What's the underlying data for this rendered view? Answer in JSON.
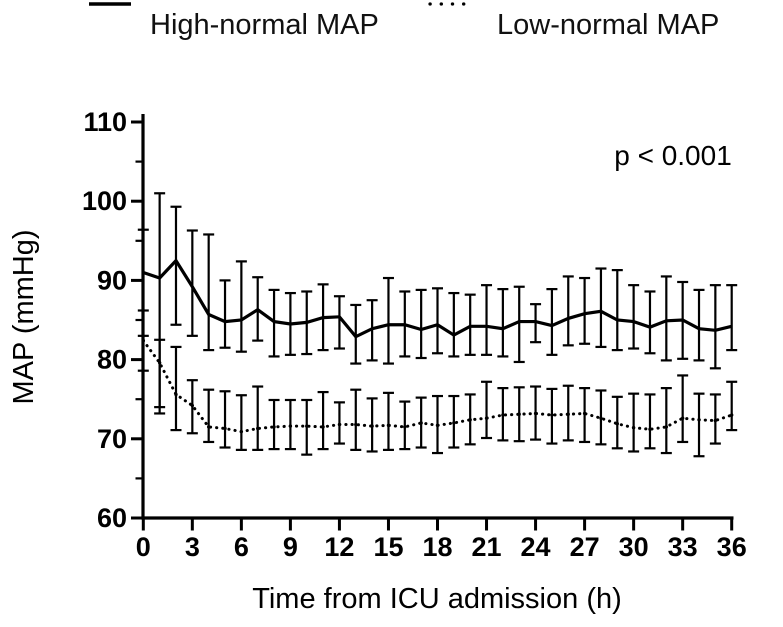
{
  "legend": [
    {
      "label": "High-normal MAP",
      "style": "solid"
    },
    {
      "label": "Low-normal MAP",
      "style": "dotted"
    }
  ],
  "annotation": {
    "p_value": "p < 0.001"
  },
  "colors": {
    "line": "#000000",
    "background": "#ffffff"
  },
  "chart_data": {
    "type": "line",
    "title": "",
    "xlabel": "Time from ICU admission (h)",
    "ylabel": "MAP (mmHg)",
    "xlim": [
      0,
      36
    ],
    "ylim": [
      60,
      110
    ],
    "xticks": [
      0,
      3,
      6,
      9,
      12,
      15,
      18,
      21,
      24,
      27,
      30,
      33,
      36
    ],
    "yticks": [
      60,
      70,
      80,
      90,
      100,
      110
    ],
    "yminorticks": [
      65,
      75,
      85,
      95,
      105
    ],
    "legend_position": "top",
    "grid": false,
    "error_bars": true,
    "x": [
      0,
      1,
      2,
      3,
      4,
      5,
      6,
      7,
      8,
      9,
      10,
      11,
      12,
      13,
      14,
      15,
      16,
      17,
      18,
      19,
      20,
      21,
      22,
      23,
      24,
      25,
      26,
      27,
      28,
      29,
      30,
      31,
      32,
      33,
      34,
      35,
      36
    ],
    "series": [
      {
        "name": "High-normal MAP",
        "line": "solid",
        "color": "#000000",
        "values": [
          91.0,
          90.3,
          92.5,
          89.2,
          85.7,
          84.8,
          85.0,
          86.3,
          84.8,
          84.5,
          84.7,
          85.3,
          85.4,
          82.9,
          83.9,
          84.4,
          84.4,
          83.8,
          84.4,
          83.1,
          84.2,
          84.2,
          83.9,
          84.8,
          84.8,
          84.3,
          85.2,
          85.8,
          86.1,
          85.0,
          84.8,
          84.1,
          84.9,
          85.0,
          83.9,
          83.7,
          84.2
        ],
        "lower": [
          83.0,
          74.0,
          84.4,
          83.0,
          81.2,
          81.5,
          81.0,
          82.4,
          80.4,
          80.6,
          80.7,
          81.2,
          81.4,
          79.5,
          79.9,
          79.5,
          80.4,
          80.2,
          80.8,
          80.4,
          80.6,
          80.6,
          80.4,
          79.7,
          82.2,
          80.6,
          81.8,
          82.0,
          81.6,
          81.2,
          81.4,
          80.8,
          79.9,
          80.1,
          79.9,
          78.9,
          81.2
        ],
        "upper": [
          96.4,
          101.0,
          99.3,
          96.3,
          95.8,
          90.0,
          92.4,
          90.4,
          88.8,
          88.4,
          88.6,
          89.5,
          88.0,
          86.9,
          87.5,
          90.3,
          88.6,
          88.8,
          89.0,
          88.4,
          88.2,
          89.4,
          88.9,
          89.2,
          87.0,
          88.9,
          90.5,
          90.3,
          91.5,
          91.3,
          89.4,
          88.6,
          90.5,
          89.8,
          88.8,
          89.4,
          89.4
        ]
      },
      {
        "name": "Low-normal MAP",
        "line": "dotted",
        "color": "#000000",
        "values": [
          82.4,
          79.6,
          75.6,
          74.2,
          71.5,
          71.3,
          70.9,
          71.3,
          71.5,
          71.6,
          71.6,
          71.5,
          71.8,
          71.8,
          71.6,
          71.7,
          71.5,
          72.0,
          71.7,
          72.0,
          72.4,
          72.6,
          73.0,
          73.1,
          73.2,
          73.0,
          73.1,
          73.2,
          72.6,
          71.9,
          71.4,
          71.2,
          71.5,
          72.6,
          72.4,
          72.3,
          73.0
        ],
        "lower": [
          78.6,
          73.2,
          71.1,
          70.7,
          69.6,
          68.9,
          68.6,
          68.6,
          68.7,
          68.7,
          68.0,
          68.7,
          69.4,
          68.6,
          68.4,
          68.6,
          68.7,
          68.9,
          68.2,
          68.9,
          69.3,
          70.1,
          69.8,
          69.7,
          69.9,
          69.4,
          69.8,
          69.6,
          69.3,
          68.8,
          68.4,
          68.8,
          68.2,
          69.6,
          67.8,
          69.4,
          71.1
        ],
        "upper": [
          86.2,
          82.5,
          81.6,
          77.4,
          76.2,
          76.0,
          75.5,
          76.6,
          74.9,
          74.9,
          74.9,
          75.9,
          74.6,
          76.2,
          75.1,
          75.8,
          74.7,
          75.2,
          75.4,
          75.4,
          75.6,
          77.2,
          76.4,
          76.5,
          76.6,
          76.3,
          76.7,
          76.4,
          76.1,
          75.3,
          75.7,
          75.6,
          76.4,
          78.0,
          75.7,
          75.6,
          77.2
        ]
      }
    ],
    "annotations": [
      {
        "text": "p < 0.001",
        "x": 28.5,
        "y": 104
      }
    ]
  }
}
